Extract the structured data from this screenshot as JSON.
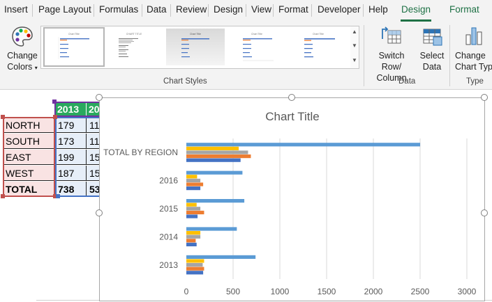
{
  "ribbon_tabs": [
    "Insert",
    "Page Layout",
    "Formulas",
    "Data",
    "Review",
    "Design",
    "View",
    "Format",
    "Developer",
    "Help",
    "Design",
    "Format"
  ],
  "ribbon": {
    "change_colors": {
      "line1": "Change",
      "line2": "Colors",
      "icon": "palette-icon"
    },
    "chart_styles_label": "Chart Styles",
    "switch_row_column": {
      "line1": "Switch Row/",
      "line2": "Column",
      "icon": "switch-row-column-icon"
    },
    "select_data": {
      "line1": "Select",
      "line2": "Data",
      "icon": "select-data-icon"
    },
    "data_group_label": "Data",
    "change_chart_type": {
      "line1": "Change",
      "line2": "Chart Type",
      "icon": "change-chart-type-icon"
    },
    "type_group_label": "Type",
    "style_thumb_titles": [
      "Chart Title",
      "CHART TITLE",
      "Chart Title",
      "Chart Title",
      "Chart Title"
    ]
  },
  "table": {
    "headers": [
      "2013",
      "20"
    ],
    "rows": [
      {
        "region": "NORTH",
        "v2013": "179",
        "v2014": "11"
      },
      {
        "region": "SOUTH",
        "v2013": "173",
        "v2014": "11"
      },
      {
        "region": "EAST",
        "v2013": "199",
        "v2014": "15"
      },
      {
        "region": "WEST",
        "v2013": "187",
        "v2014": "15"
      },
      {
        "region": "TOTAL",
        "v2013": "738",
        "v2014": "53"
      }
    ]
  },
  "colors": {
    "series": [
      "#4472c4",
      "#ed7d31",
      "#a5a5a5",
      "#ffc000",
      "#5b9bd5"
    ],
    "accent_green": "#1e7145",
    "header_green": "#2aa95e"
  },
  "chart_data": {
    "type": "bar",
    "orientation": "horizontal",
    "title": "Chart Title",
    "categories": [
      "2013",
      "2014",
      "2015",
      "2016",
      "TOTAL BY REGION"
    ],
    "series": [
      {
        "values": [
          180,
          110,
          120,
          150,
          580
        ]
      },
      {
        "values": [
          190,
          100,
          190,
          180,
          690
        ]
      },
      {
        "values": [
          175,
          150,
          150,
          150,
          660
        ]
      },
      {
        "values": [
          190,
          150,
          110,
          115,
          560
        ]
      },
      {
        "values": [
          740,
          540,
          620,
          600,
          2500
        ]
      }
    ],
    "xlim": [
      0,
      3000
    ],
    "xticks": [
      0,
      500,
      1000,
      1500,
      2000,
      2500,
      3000
    ],
    "grid": true,
    "legend": "none"
  }
}
